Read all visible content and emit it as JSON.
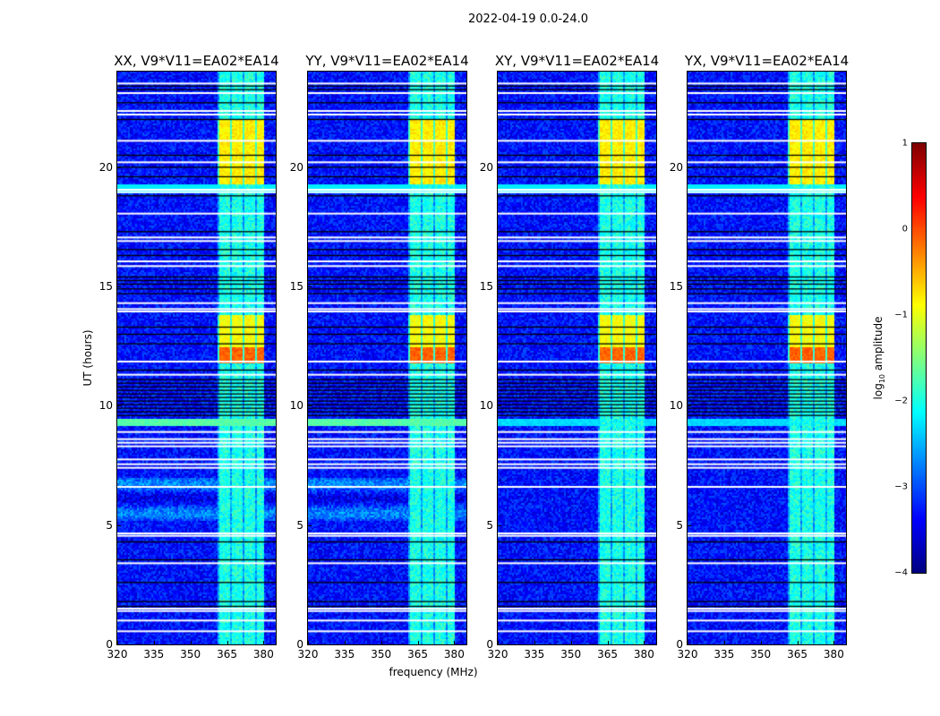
{
  "chart_data": {
    "type": "heatmap",
    "title": "2022-04-19 0.0-24.0",
    "xlabel": "frequency (MHz)",
    "ylabel": "UT (hours)",
    "xlim": [
      320,
      385
    ],
    "ylim": [
      0,
      24
    ],
    "xticks": [
      "320",
      "335",
      "350",
      "365",
      "380"
    ],
    "xtick_values": [
      320,
      335,
      350,
      365,
      380
    ],
    "yticks": [
      "0",
      "5",
      "10",
      "15",
      "20"
    ],
    "ytick_values": [
      0,
      5,
      10,
      15,
      20
    ],
    "colorbar": {
      "label": "log10 amplitude",
      "label_main": "log",
      "label_sub": "10",
      "label_rest": " amplitude",
      "range": [
        -4,
        1
      ],
      "ticks": [
        "1",
        "0",
        "−1",
        "−2",
        "−3",
        "−4"
      ],
      "tick_values": [
        1,
        0,
        -1,
        -2,
        -3,
        -4
      ],
      "colormap": "jet"
    },
    "panels": [
      {
        "title": "XX, V9*V11=EA02*EA14",
        "pol": "XX",
        "band_glow": true
      },
      {
        "title": "YY, V9*V11=EA02*EA14",
        "pol": "YY",
        "band_glow": true
      },
      {
        "title": "XY, V9*V11=EA02*EA14",
        "pol": "XY",
        "band_glow": false
      },
      {
        "title": "YX, V9*V11=EA02*EA14",
        "pol": "YX",
        "band_glow": false
      }
    ],
    "background_level": -3.3,
    "rfi_band_mhz": [
      361,
      380
    ],
    "rfi_band_level": -2.0,
    "strong_blocks": [
      {
        "hours": [
          19.3,
          22.0
        ],
        "level": -0.8
      },
      {
        "hours": [
          11.8,
          13.8
        ],
        "level": -0.9,
        "peak_hours": [
          11.8,
          12.5
        ],
        "peak_level": -0.1
      }
    ],
    "flagged_hours_white": [
      0.55,
      1.0,
      1.4,
      1.5,
      3.4,
      4.55,
      4.65,
      6.6,
      7.4,
      7.55,
      7.75,
      8.3,
      8.45,
      8.6,
      8.9,
      11.3,
      11.85,
      13.95,
      14.05,
      14.3,
      15.85,
      16.05,
      16.9,
      17.05,
      18.05,
      18.95,
      19.05,
      20.2,
      21.1,
      22.2,
      22.35,
      23.1,
      23.5
    ],
    "flagged_hours_black": [
      1.6,
      1.8,
      2.6,
      3.55,
      4.3,
      9.6,
      9.75,
      9.9,
      10.05,
      10.2,
      10.35,
      10.5,
      10.65,
      10.8,
      10.95,
      11.1,
      11.5,
      12.6,
      13.0,
      13.3,
      14.7,
      14.9,
      15.1,
      15.25,
      15.4,
      16.3,
      16.55,
      17.3,
      18.8,
      19.6,
      20.0,
      20.5,
      22.0,
      22.7,
      23.25,
      23.4
    ]
  }
}
